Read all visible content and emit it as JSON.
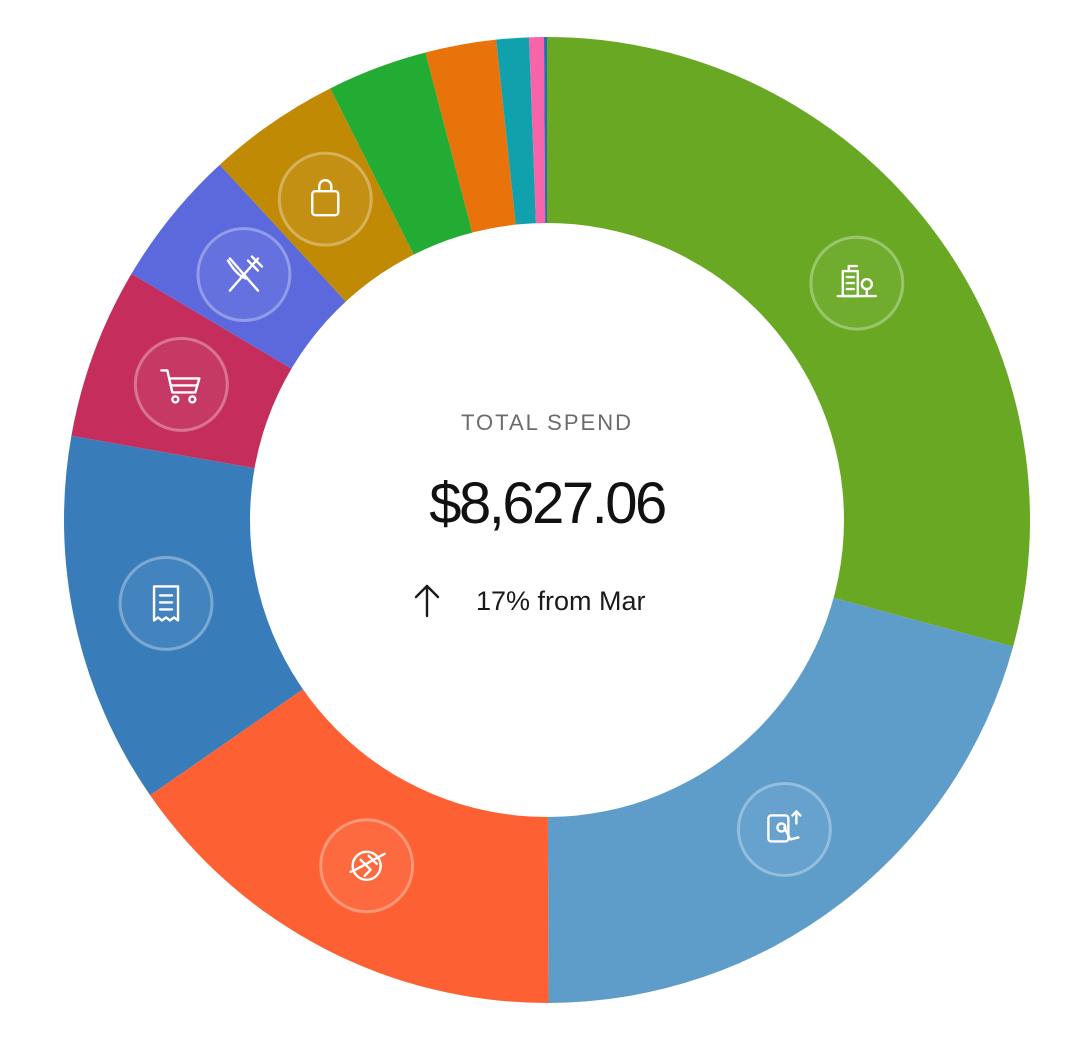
{
  "chart_data": {
    "type": "pie",
    "variant": "donut",
    "center": {
      "label": "TOTAL SPEND",
      "total": "$8,627.06",
      "change_arrow": "up",
      "change_text": "17% from Mar"
    },
    "slices": [
      {
        "share": 0.296,
        "color": "#68A822",
        "icon": "building-icon"
      },
      {
        "share": 0.21,
        "color": "#5E9CCA",
        "icon": "tap-transfer-icon"
      },
      {
        "share": 0.156,
        "color": "#FD6133",
        "icon": "travel-plane-icon"
      },
      {
        "share": 0.126,
        "color": "#387DBA",
        "icon": "receipt-icon"
      },
      {
        "share": 0.058,
        "color": "#C42D5C",
        "icon": "shopping-cart-icon"
      },
      {
        "share": 0.047,
        "color": "#5B69DC",
        "icon": "fork-knife-icon"
      },
      {
        "share": 0.045,
        "color": "#C18A05",
        "icon": "shopping-bag-icon"
      },
      {
        "share": 0.034,
        "color": "#22AC33",
        "icon": null
      },
      {
        "share": 0.024,
        "color": "#E7730A",
        "icon": null
      },
      {
        "share": 0.011,
        "color": "#10A1AD",
        "icon": null
      },
      {
        "share": 0.005,
        "color": "#F864A9",
        "icon": null
      },
      {
        "share": 0.001,
        "color": "#2A6BAF",
        "icon": null
      }
    ]
  }
}
